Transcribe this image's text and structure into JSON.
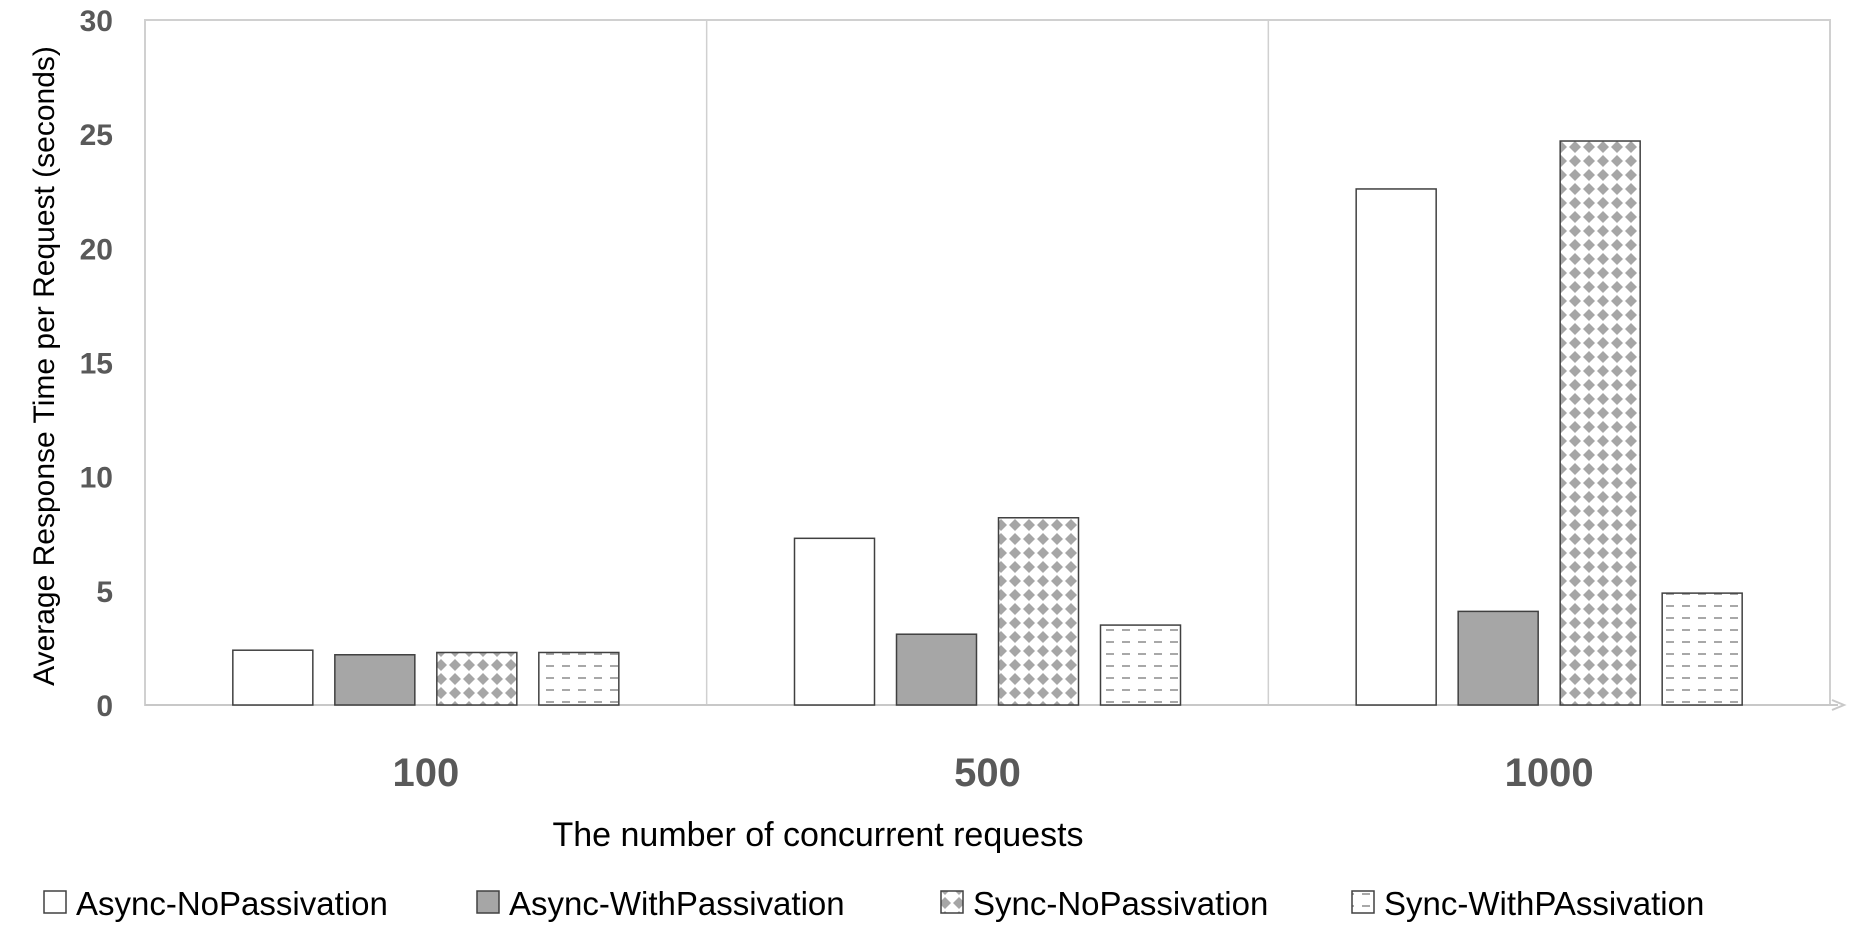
{
  "chart_data": {
    "type": "bar",
    "title": "",
    "xlabel": "The number of concurrent requests",
    "ylabel": "Average Response Time per Request (seconds)",
    "categories": [
      "100",
      "500",
      "1000"
    ],
    "ylim": [
      0,
      30
    ],
    "yticks": [
      0,
      5,
      10,
      15,
      20,
      25,
      30
    ],
    "grid": false,
    "legend_position": "bottom",
    "series": [
      {
        "name": "Async-NoPassivation",
        "values": [
          2.4,
          7.3,
          22.6
        ],
        "fill": "white"
      },
      {
        "name": "Async-WithPassivation",
        "values": [
          2.2,
          3.1,
          4.1
        ],
        "fill": "#a6a6a6"
      },
      {
        "name": "Sync-NoPassivation",
        "values": [
          2.3,
          8.2,
          24.7
        ],
        "fill": "diamond-pattern"
      },
      {
        "name": "Sync-WithPAssivation",
        "values": [
          2.3,
          3.5,
          4.9
        ],
        "fill": "dash-pattern"
      }
    ]
  }
}
